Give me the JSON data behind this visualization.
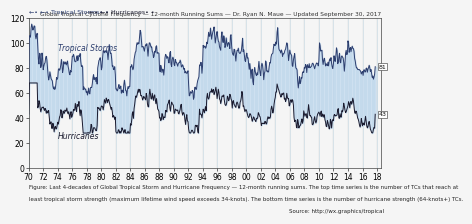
{
  "title": "Global Tropical Cyclone Frequency — 12-month Running Sums — Dr. Ryan N. Maue — Updated September 30, 2017",
  "caption_line1": "Figure: Last 4-decades of Global Tropical Storm and Hurricane Frequency — 12-month running sums. The top time series is the number of TCs that reach at",
  "caption_line2": "least tropical storm strength (maximum lifetime wind speed exceeds 34-knots). The bottom time series is the number of hurricane strength (64-knots+) TCs.",
  "caption_line3": "Source: http://wx.graphics/tropical",
  "legend_tropical": "←• Tropical Storms•",
  "legend_hurricane": "←• Hurricanes•",
  "label_tropical": "Tropical Storms",
  "label_hurricane": "Hurricanes",
  "end_label_tropical": "81",
  "end_label_hurricane": "43",
  "ylim": [
    0,
    120
  ],
  "y_ticks": [
    0,
    20,
    40,
    60,
    80,
    100,
    120
  ],
  "x_tick_labels": [
    "70",
    "72",
    "74",
    "76",
    "78",
    "80",
    "82",
    "84",
    "86",
    "88",
    "90",
    "92",
    "94",
    "96",
    "98",
    "00",
    "02",
    "04",
    "06",
    "08",
    "10",
    "12",
    "14",
    "16",
    "18"
  ],
  "fill_color": "#c8ddf0",
  "line_color_tropical": "#2d3e6e",
  "line_color_hurricane": "#1a1a2e",
  "stripe_color": "#9bbdd8",
  "background_color": "#f5f5f5",
  "title_fontsize": 4.2,
  "caption_fontsize": 4.0,
  "axis_fontsize": 5.5,
  "label_fontsize": 6.0
}
